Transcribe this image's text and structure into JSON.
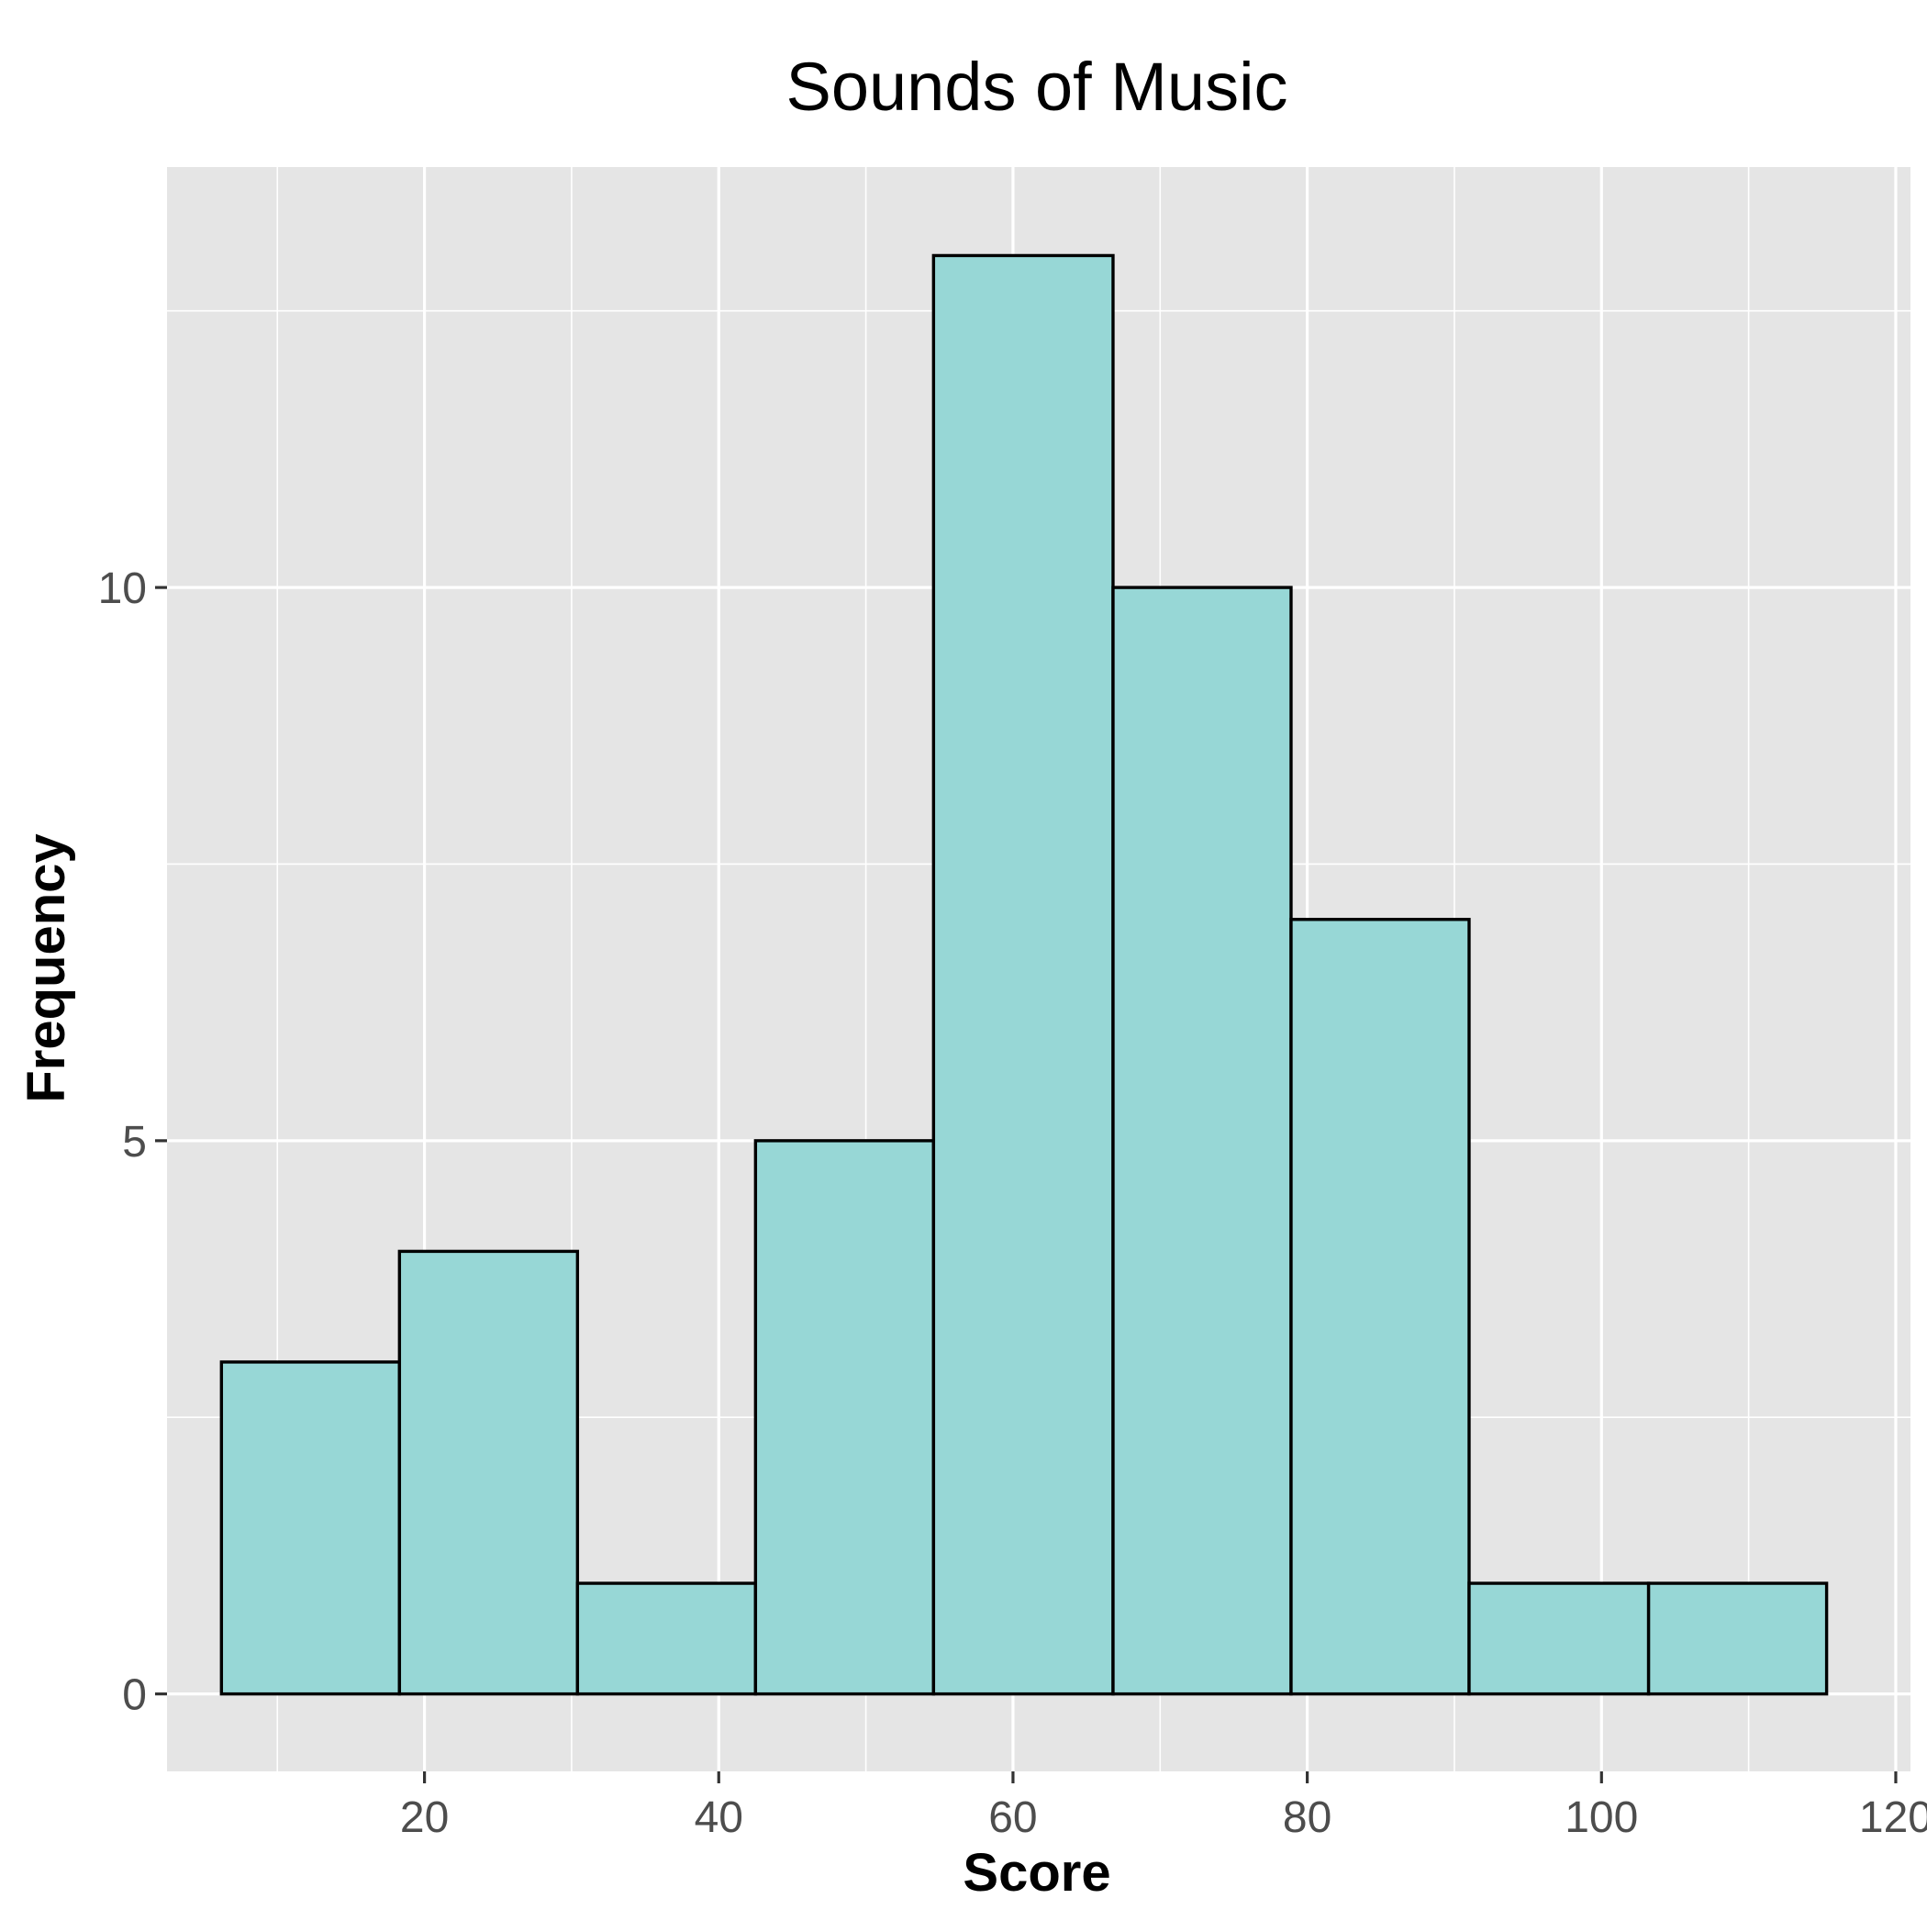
{
  "chart_data": {
    "type": "bar",
    "title": "Sounds of Music",
    "xlabel": "Score",
    "ylabel": "Frequency",
    "xlim": [
      2.5,
      121
    ],
    "ylim": [
      -0.7,
      13.8
    ],
    "x_ticks": [
      20,
      40,
      60,
      80,
      100,
      120
    ],
    "x_tick_labels": [
      "20",
      "40",
      "60",
      "80",
      "100",
      "120"
    ],
    "y_ticks": [
      0,
      5,
      10
    ],
    "y_tick_labels": [
      "0",
      "5",
      "10"
    ],
    "x_minor_gridlines": [
      10,
      30,
      50,
      70,
      90,
      110
    ],
    "y_minor_gridlines": [
      2.5,
      7.5,
      12.5
    ],
    "bin_edges": [
      6.2,
      18.3,
      30.4,
      42.5,
      54.6,
      66.8,
      78.9,
      91.0,
      103.2,
      115.3
    ],
    "values": [
      3,
      4,
      1,
      5,
      13,
      10,
      7,
      1,
      1
    ],
    "bar_fill": "#97d7d6",
    "bar_stroke": "#000000",
    "panel_background": "#e5e5e5",
    "gridline_color": "#ffffff",
    "grid": true,
    "legend": "none"
  }
}
